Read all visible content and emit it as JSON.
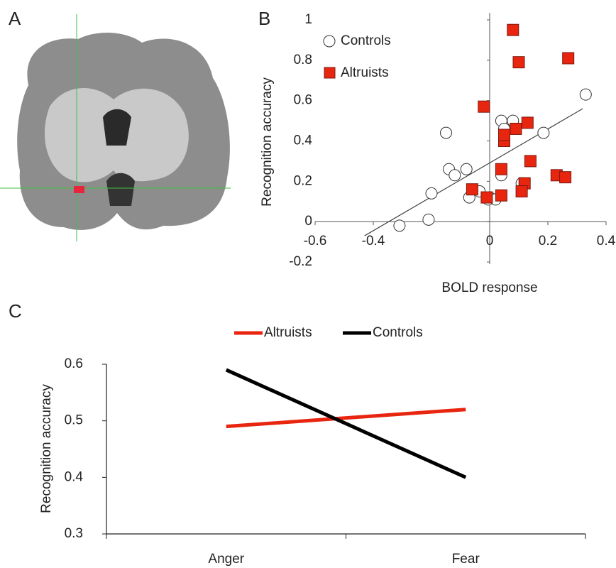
{
  "panel_a": {
    "label": "A"
  },
  "chart_data": [
    {
      "type": "scatter",
      "panel": "B",
      "xlabel": "BOLD response",
      "ylabel": "Recognition accuracy",
      "xlim": [
        -0.6,
        0.4
      ],
      "ylim": [
        -0.2,
        1
      ],
      "xticks": [
        -0.6,
        -0.4,
        0,
        0.2,
        0.4
      ],
      "yticks": [
        -0.2,
        0,
        0.2,
        0.4,
        0.6,
        0.8,
        1
      ],
      "legend": "upper left",
      "series": [
        {
          "name": "Controls",
          "marker": "circle",
          "color": "#ffffff",
          "x": [
            0.33,
            0.185,
            -0.15,
            -0.14,
            -0.12,
            -0.08,
            -0.2,
            0.0,
            -0.005,
            -0.035,
            -0.07,
            0.02,
            0.04,
            0.08,
            0.05,
            0.04,
            0.11,
            -0.21,
            -0.31
          ],
          "values": [
            0.63,
            0.44,
            0.44,
            0.26,
            0.23,
            0.26,
            0.14,
            0.12,
            0.11,
            0.15,
            0.12,
            0.11,
            0.5,
            0.5,
            0.46,
            0.23,
            0.19,
            0.01,
            -0.02
          ]
        },
        {
          "name": "Altruists",
          "marker": "square",
          "color": "#e8250f",
          "x": [
            0.08,
            0.27,
            0.1,
            -0.02,
            0.05,
            0.09,
            0.13,
            0.14,
            0.04,
            0.12,
            0.11,
            0.23,
            0.26,
            -0.06,
            0.04,
            -0.01,
            0.05
          ],
          "values": [
            0.95,
            0.81,
            0.79,
            0.57,
            0.4,
            0.46,
            0.49,
            0.3,
            0.26,
            0.19,
            0.15,
            0.23,
            0.22,
            0.16,
            0.13,
            0.12,
            0.43
          ]
        }
      ],
      "trendline": {
        "x": [
          -0.43,
          0.32
        ],
        "y": [
          -0.07,
          0.56
        ]
      }
    },
    {
      "type": "line",
      "panel": "C",
      "ylabel": "Recognition accuracy",
      "categories": [
        "Anger",
        "Fear"
      ],
      "ylim": [
        0.3,
        0.6
      ],
      "yticks": [
        0.3,
        0.4,
        0.5,
        0.6
      ],
      "legend": "top",
      "series": [
        {
          "name": "Altruists",
          "color": "#e8250f",
          "values": [
            0.49,
            0.52
          ]
        },
        {
          "name": "Controls",
          "color": "#000000",
          "values": [
            0.59,
            0.4
          ]
        }
      ]
    }
  ]
}
